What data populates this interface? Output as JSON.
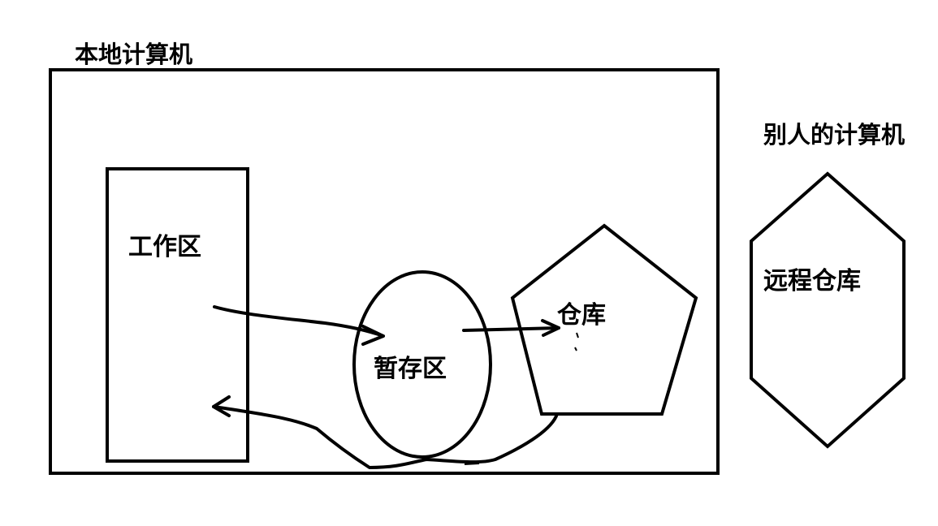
{
  "colors": {
    "ink": "#000000",
    "background": "#ffffff"
  },
  "local_computer": {
    "title": "本地计算机",
    "working_area": "工作区",
    "staging_area": "暂存区",
    "repository": "仓库"
  },
  "remote_computer": {
    "title": "别人的计算机",
    "repository": "远程仓库"
  }
}
